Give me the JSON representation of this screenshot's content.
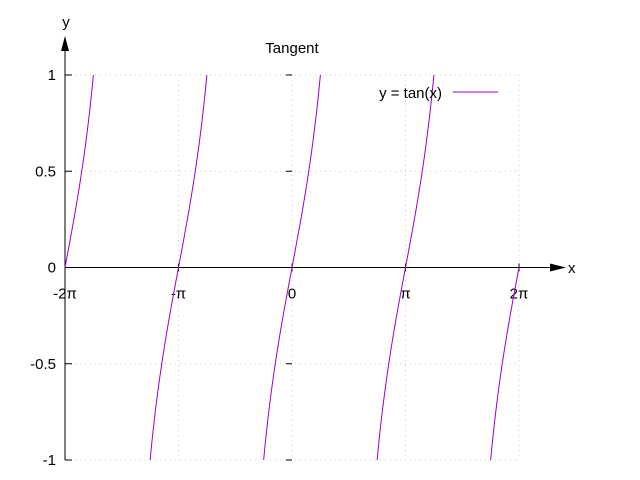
{
  "chart_data": {
    "type": "line",
    "title": "Tangent",
    "xlabel": "x",
    "ylabel": "y",
    "xlim": [
      -6.2832,
      6.2832
    ],
    "ylim": [
      -1,
      1
    ],
    "grid": true,
    "legend_position": "top-right",
    "x_ticks": [
      {
        "value": -6.2832,
        "label": "-2π"
      },
      {
        "value": -3.1416,
        "label": "-π"
      },
      {
        "value": 0,
        "label": "0"
      },
      {
        "value": 3.1416,
        "label": "π"
      },
      {
        "value": 6.2832,
        "label": "2π"
      }
    ],
    "y_ticks": [
      {
        "value": 1,
        "label": "1"
      },
      {
        "value": 0.5,
        "label": "0.5"
      },
      {
        "value": 0,
        "label": "0"
      },
      {
        "value": -0.5,
        "label": "-0.5"
      },
      {
        "value": -1,
        "label": "-1"
      }
    ],
    "series": [
      {
        "name": "y = tan(x)",
        "color": "#9400d3",
        "segments": [
          {
            "x": [
              -6.2832,
              -5.8905,
              -5.4978
            ],
            "y": [
              0,
              0.4142,
              1
            ]
          },
          {
            "x": [
              -3.927,
              -3.5343,
              -3.1416,
              -2.7489,
              -2.3562
            ],
            "y": [
              -1,
              -0.4142,
              0,
              0.4142,
              1
            ]
          },
          {
            "x": [
              -0.7854,
              -0.3927,
              0,
              0.3927,
              0.7854
            ],
            "y": [
              -1,
              -0.4142,
              0,
              0.4142,
              1
            ]
          },
          {
            "x": [
              2.3562,
              2.7489,
              3.1416,
              3.5343,
              3.927
            ],
            "y": [
              -1,
              -0.4142,
              0,
              0.4142,
              1
            ]
          },
          {
            "x": [
              5.4978,
              5.8905,
              6.2832
            ],
            "y": [
              -1,
              -0.4142,
              0
            ]
          }
        ]
      }
    ]
  }
}
